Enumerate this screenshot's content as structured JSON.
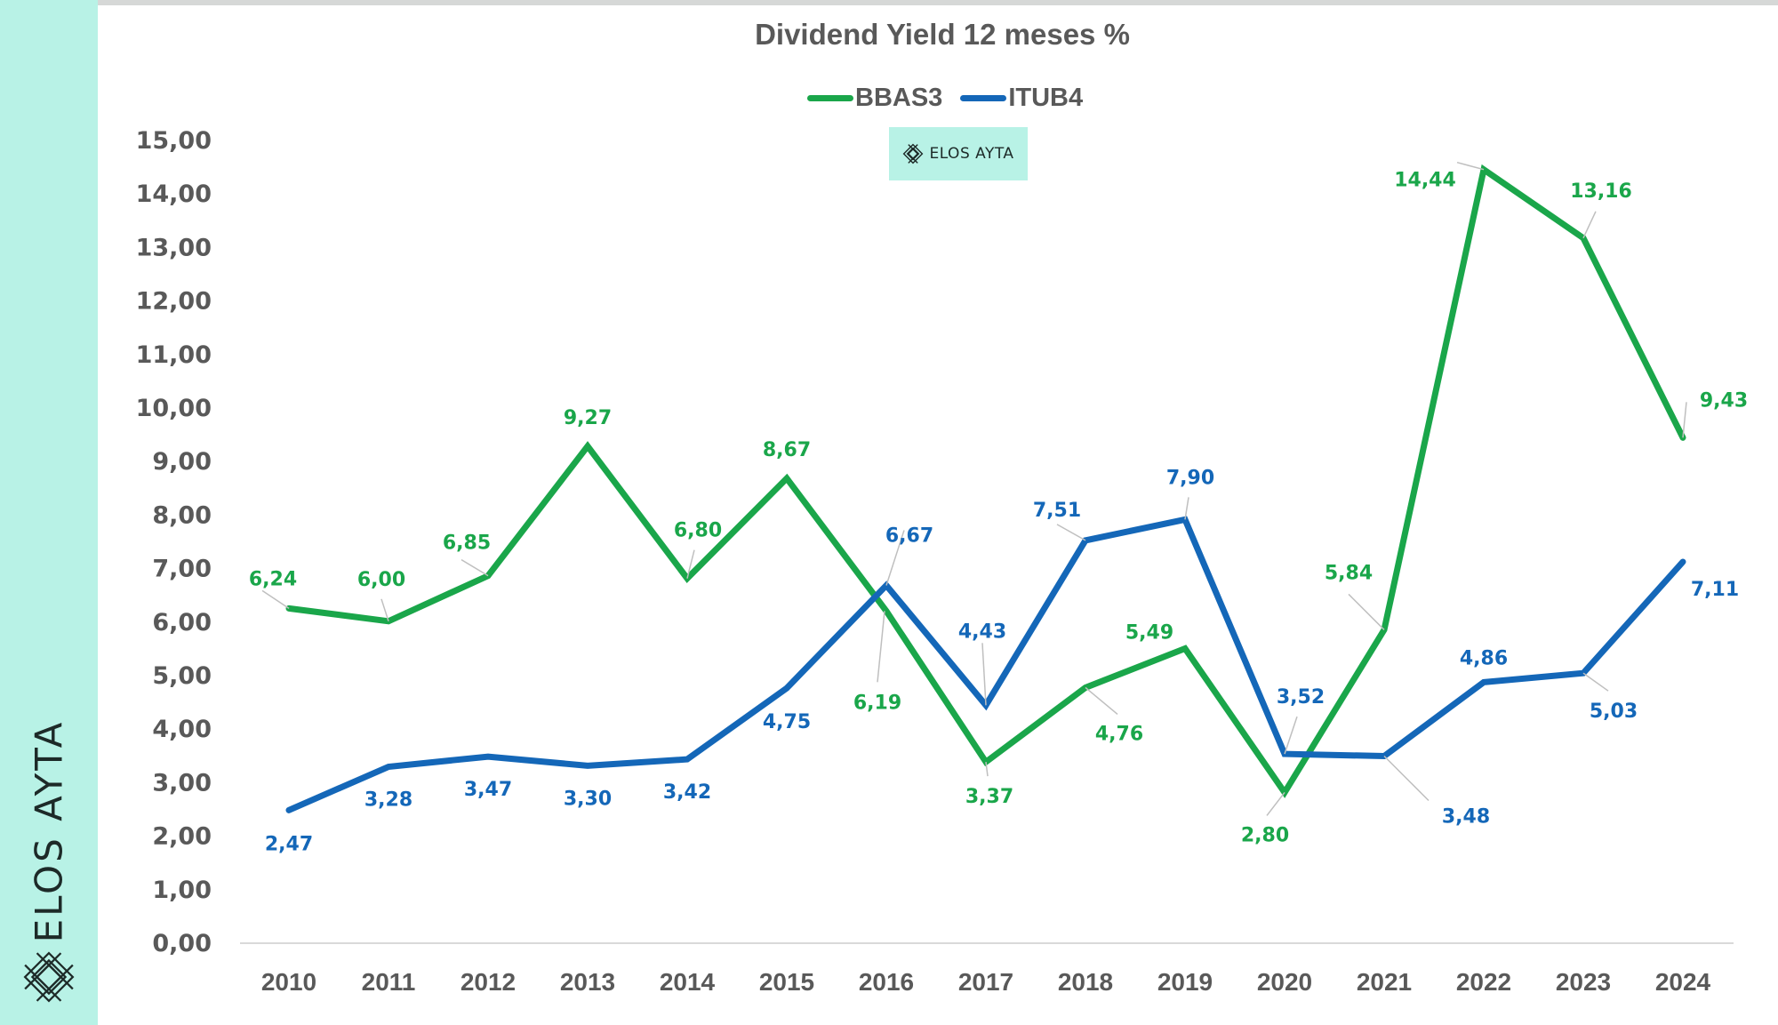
{
  "sidebar": {
    "brand": "ELOS AYTA",
    "logo_icon": "elos-ayta-lattice-logo"
  },
  "badge": {
    "text": "ELOS AYTA",
    "icon": "elos-ayta-lattice-logo"
  },
  "colors": {
    "bbas3": "#1aa64a",
    "itub4": "#1467b8",
    "sidebar_bg": "#b8f2e6",
    "text": "#595959",
    "leader_line": "#bfbfbf"
  },
  "chart_data": {
    "type": "line",
    "title": "Dividend Yield 12 meses %",
    "xlabel": "",
    "ylabel": "",
    "categories": [
      "2010",
      "2011",
      "2012",
      "2013",
      "2014",
      "2015",
      "2016",
      "2017",
      "2018",
      "2019",
      "2020",
      "2021",
      "2022",
      "2023",
      "2024"
    ],
    "ylim": [
      0,
      15
    ],
    "yticks": [
      "0,00",
      "1,00",
      "2,00",
      "3,00",
      "4,00",
      "5,00",
      "6,00",
      "7,00",
      "8,00",
      "9,00",
      "10,00",
      "11,00",
      "12,00",
      "13,00",
      "14,00",
      "15,00"
    ],
    "grid": false,
    "legend_position": "top-center",
    "series": [
      {
        "name": "BBAS3",
        "color": "#1aa64a",
        "values": [
          6.24,
          6.0,
          6.85,
          9.27,
          6.8,
          8.67,
          6.19,
          3.37,
          4.76,
          5.49,
          2.8,
          5.84,
          14.44,
          13.16,
          9.43
        ],
        "labels": [
          "6,24",
          "6,00",
          "6,85",
          "9,27",
          "6,80",
          "8,67",
          "6,19",
          "3,37",
          "4,76",
          "5,49",
          "2,80",
          "5,84",
          "14,44",
          "13,16",
          "9,43"
        ]
      },
      {
        "name": "ITUB4",
        "color": "#1467b8",
        "values": [
          2.47,
          3.28,
          3.47,
          3.3,
          3.42,
          4.75,
          6.67,
          4.43,
          7.51,
          7.9,
          3.52,
          3.48,
          4.86,
          5.03,
          7.11
        ],
        "labels": [
          "2,47",
          "3,28",
          "3,47",
          "3,30",
          "3,42",
          "4,75",
          "6,67",
          "4,43",
          "7,51",
          "7,90",
          "3,52",
          "3,48",
          "4,86",
          "5,03",
          "7,11"
        ]
      }
    ]
  }
}
